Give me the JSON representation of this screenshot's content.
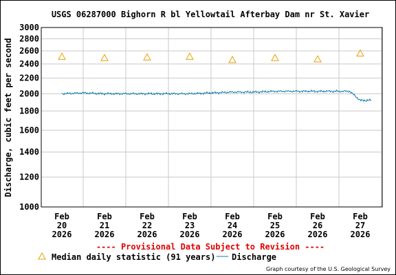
{
  "chart_data": {
    "type": "line",
    "title": "USGS 06287000 Bighorn R bl Yellowtail Afterbay Dam nr St. Xavier",
    "ylabel": "Discharge, cubic feet per second",
    "xlabel": "",
    "y_scale": "log",
    "ylim": [
      1000,
      3000
    ],
    "y_ticks": [
      1000,
      1200,
      1400,
      1600,
      1800,
      2000,
      2200,
      2400,
      2600,
      2800,
      3000
    ],
    "x_ticks": [
      {
        "month": "Feb",
        "day": "20",
        "year": "2026"
      },
      {
        "month": "Feb",
        "day": "21",
        "year": "2026"
      },
      {
        "month": "Feb",
        "day": "22",
        "year": "2026"
      },
      {
        "month": "Feb",
        "day": "23",
        "year": "2026"
      },
      {
        "month": "Feb",
        "day": "24",
        "year": "2026"
      },
      {
        "month": "Feb",
        "day": "25",
        "year": "2026"
      },
      {
        "month": "Feb",
        "day": "26",
        "year": "2026"
      },
      {
        "month": "Feb",
        "day": "27",
        "year": "2026"
      }
    ],
    "grid": true,
    "series": [
      {
        "name": "Median daily statistic (91 years)",
        "marker": "triangle",
        "color": "#e8a000",
        "x": [
          "2026-02-20",
          "2026-02-21",
          "2026-02-22",
          "2026-02-23",
          "2026-02-24",
          "2026-02-25",
          "2026-02-26",
          "2026-02-27"
        ],
        "values": [
          2510,
          2490,
          2500,
          2510,
          2460,
          2490,
          2470,
          2560
        ]
      },
      {
        "name": "Discharge",
        "color": "#0e7ba8",
        "x": [
          "2026-02-20 00:00",
          "2026-02-20 12:00",
          "2026-02-21 00:00",
          "2026-02-21 12:00",
          "2026-02-22 00:00",
          "2026-02-22 12:00",
          "2026-02-23 00:00",
          "2026-02-23 12:00",
          "2026-02-24 00:00",
          "2026-02-24 12:00",
          "2026-02-25 00:00",
          "2026-02-25 12:00",
          "2026-02-26 00:00",
          "2026-02-26 06:00",
          "2026-02-26 12:00",
          "2026-02-26 18:00",
          "2026-02-27 00:00",
          "2026-02-27 06:00"
        ],
        "values": [
          2000,
          2010,
          2000,
          2000,
          2000,
          2000,
          2000,
          2010,
          2020,
          2020,
          2030,
          2030,
          2030,
          2030,
          2030,
          2030,
          1920,
          1920
        ]
      }
    ],
    "provisional_note": "---- Provisional Data Subject to Revision ----",
    "credit": "Graph courtesy of the U.S. Geological Survey"
  },
  "colors": {
    "grid": "#c8c8c8",
    "provisional": "#e00000",
    "median": "#e8a000",
    "discharge": "#0e7ba8"
  }
}
